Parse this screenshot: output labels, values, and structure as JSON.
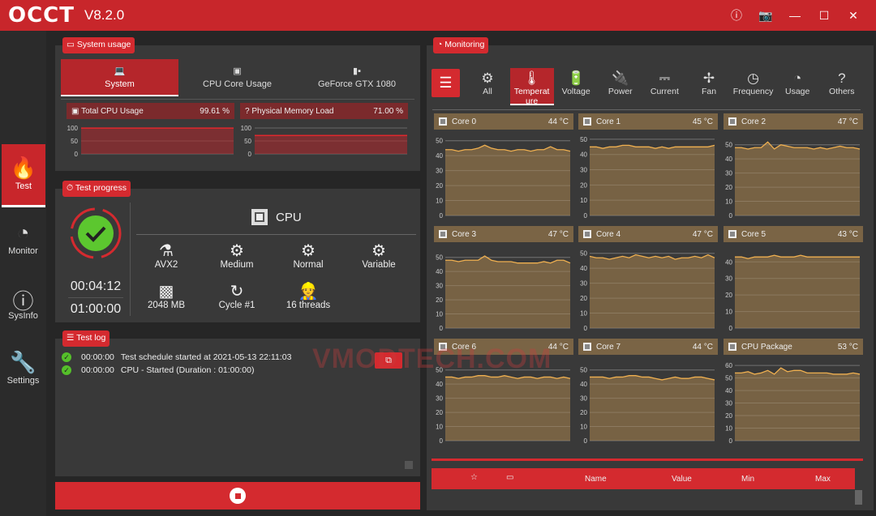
{
  "app": {
    "logo": "OCCT",
    "version": "V8.2.0",
    "window_icons": [
      "info-icon",
      "camera-icon",
      "minimize-icon",
      "maximize-icon",
      "close-icon"
    ]
  },
  "sidebar": {
    "items": [
      {
        "label": "Test",
        "icon": "flame-icon",
        "active": true
      },
      {
        "label": "Monitor",
        "icon": "gauge-icon"
      },
      {
        "label": "SysInfo",
        "icon": "info-icon"
      },
      {
        "label": "Settings",
        "icon": "wrench-icon"
      }
    ]
  },
  "system_usage": {
    "tag": "System usage",
    "tabs": [
      "System",
      "CPU Core Usage",
      "GeForce GTX 1080"
    ],
    "cpu": {
      "label": "Total CPU Usage",
      "value": "99.61 %",
      "ticks": [
        "100",
        "50",
        "0"
      ],
      "level": 99.61
    },
    "mem": {
      "label": "Physical Memory Load",
      "value": "71.00 %",
      "ticks": [
        "100",
        "50",
        "0"
      ],
      "level": 71
    }
  },
  "test_progress": {
    "tag": "Test progress",
    "status": "passed",
    "elapsed": "00:04:12",
    "duration": "01:00:00",
    "device": "CPU",
    "items": [
      {
        "label": "AVX2",
        "icon": "flask-icon"
      },
      {
        "label": "Medium",
        "icon": "gears-icon"
      },
      {
        "label": "Normal",
        "icon": "gears-icon"
      },
      {
        "label": "Variable",
        "icon": "gears-icon"
      },
      {
        "label": "2048 MB",
        "icon": "chip-icon"
      },
      {
        "label": "Cycle #1",
        "icon": "refresh-icon"
      },
      {
        "label": "16 threads",
        "icon": "worker-icon"
      }
    ]
  },
  "test_log": {
    "tag": "Test log",
    "entries": [
      {
        "time": "00:00:00",
        "text": "Test schedule started at 2021-05-13 22:11:03"
      },
      {
        "time": "00:00:00",
        "text": "CPU - Started (Duration : 01:00:00)"
      }
    ]
  },
  "monitoring": {
    "tag": "Monitoring",
    "tabs": [
      "All",
      "Temperat ure",
      "Voltage",
      "Power",
      "Current",
      "Fan",
      "Frequency",
      "Usage",
      "Others"
    ],
    "active_tab": "Temperat ure",
    "table_headers": {
      "name": "Name",
      "value": "Value",
      "min": "Min",
      "max": "Max"
    }
  },
  "colors": {
    "accent": "#d42a2f",
    "chart_fill": "#7a6445",
    "chart_line": "#f0b050"
  },
  "watermark": "VMODTECH.COM",
  "chart_data": [
    {
      "type": "area",
      "title": "Core 0",
      "value": "44 °C",
      "ylim": [
        0,
        52
      ],
      "ticks": [
        0,
        10,
        20,
        30,
        40,
        50
      ],
      "values": [
        44,
        44,
        43,
        44,
        44,
        45,
        47,
        45,
        44,
        44,
        43,
        44,
        44,
        43,
        44,
        44,
        46,
        44,
        44,
        43
      ]
    },
    {
      "type": "area",
      "title": "Core 1",
      "value": "45 °C",
      "ylim": [
        0,
        51
      ],
      "ticks": [
        0,
        10,
        20,
        30,
        40,
        50
      ],
      "values": [
        45,
        45,
        44,
        45,
        45,
        46,
        46,
        45,
        45,
        45,
        44,
        45,
        44,
        45,
        45,
        45,
        45,
        45,
        45,
        46
      ]
    },
    {
      "type": "area",
      "title": "Core 2",
      "value": "47 °C",
      "ylim": [
        0,
        55
      ],
      "ticks": [
        0,
        10,
        20,
        30,
        40,
        50
      ],
      "values": [
        48,
        48,
        47,
        48,
        48,
        52,
        47,
        50,
        49,
        48,
        48,
        48,
        47,
        48,
        47,
        48,
        49,
        48,
        48,
        47
      ]
    },
    {
      "type": "area",
      "title": "Core 3",
      "value": "47 °C",
      "ylim": [
        0,
        55
      ],
      "ticks": [
        0,
        10,
        20,
        30,
        40,
        50
      ],
      "values": [
        48,
        48,
        47,
        48,
        48,
        48,
        51,
        48,
        47,
        47,
        47,
        46,
        46,
        46,
        46,
        47,
        46,
        48,
        48,
        46
      ]
    },
    {
      "type": "area",
      "title": "Core 4",
      "value": "47 °C",
      "ylim": [
        0,
        52
      ],
      "ticks": [
        0,
        10,
        20,
        30,
        40,
        50
      ],
      "values": [
        48,
        47,
        47,
        46,
        47,
        48,
        47,
        49,
        48,
        47,
        48,
        47,
        48,
        46,
        47,
        47,
        48,
        47,
        49,
        47
      ]
    },
    {
      "type": "area",
      "title": "Core 5",
      "value": "43 °C",
      "ylim": [
        0,
        47
      ],
      "ticks": [
        0,
        10,
        20,
        30,
        40
      ],
      "values": [
        43,
        43,
        42,
        43,
        43,
        43,
        44,
        43,
        43,
        43,
        44,
        43,
        43,
        43,
        43,
        43,
        43,
        43,
        43,
        43
      ]
    },
    {
      "type": "area",
      "title": "Core 6",
      "value": "44 °C",
      "ylim": [
        0,
        55
      ],
      "ticks": [
        0,
        10,
        20,
        30,
        40,
        50
      ],
      "values": [
        45,
        45,
        44,
        45,
        45,
        46,
        46,
        45,
        45,
        46,
        45,
        44,
        45,
        45,
        44,
        45,
        45,
        44,
        45,
        44
      ]
    },
    {
      "type": "area",
      "title": "Core 7",
      "value": "44 °C",
      "ylim": [
        0,
        55
      ],
      "ticks": [
        0,
        10,
        20,
        30,
        40,
        50
      ],
      "values": [
        45,
        45,
        45,
        44,
        45,
        45,
        46,
        46,
        45,
        45,
        44,
        43,
        44,
        45,
        44,
        44,
        45,
        45,
        44,
        43
      ]
    },
    {
      "type": "area",
      "title": "CPU Package",
      "value": "53 °C",
      "ylim": [
        0,
        62
      ],
      "ticks": [
        0,
        10,
        20,
        30,
        40,
        50,
        60
      ],
      "values": [
        54,
        54,
        55,
        53,
        54,
        56,
        53,
        58,
        55,
        56,
        56,
        54,
        54,
        54,
        54,
        53,
        53,
        53,
        54,
        53
      ]
    }
  ]
}
